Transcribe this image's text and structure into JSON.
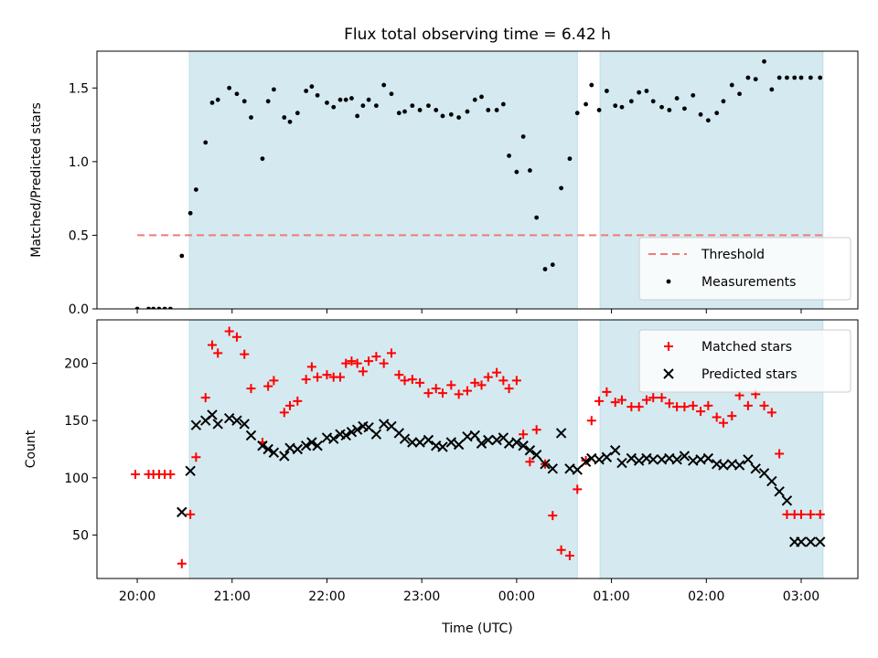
{
  "figure": {
    "title": "Flux total observing time = 6.42 h",
    "xlabel": "Time (UTC)"
  },
  "colors": {
    "shade": "#d4eaf0",
    "threshold": "#f07a7a",
    "measurement": "#000000",
    "matched": "#ff0000",
    "predicted": "#000000"
  },
  "chart_data": [
    {
      "type": "scatter",
      "panel": "top",
      "ylabel": "Matched/Predicted stars",
      "xlim_hours": [
        19.575,
        27.598
      ],
      "ylim": [
        0.0,
        1.75
      ],
      "yticks": [
        0.0,
        0.5,
        1.0,
        1.5
      ],
      "ytick_labels": [
        "0.0",
        "0.5",
        "1.0",
        "1.5"
      ],
      "xticks_hours": [
        20,
        21,
        22,
        23,
        24,
        25,
        26,
        27
      ],
      "xtick_labels": [
        "20:00",
        "21:00",
        "22:00",
        "23:00",
        "00:00",
        "01:00",
        "02:00",
        "03:00"
      ],
      "shaded_intervals_hours": [
        [
          20.55,
          24.64
        ],
        [
          24.88,
          27.23
        ]
      ],
      "legend_position": "lower-right",
      "threshold": {
        "name": "Threshold",
        "value": 0.5,
        "x_range_hours": [
          20.0,
          27.23
        ],
        "style": "dashed"
      },
      "series": [
        {
          "name": "Measurements",
          "marker": "dot",
          "x_hours": [
            20.0,
            20.12,
            20.17,
            20.23,
            20.29,
            20.35,
            20.47,
            20.56,
            20.62,
            20.72,
            20.79,
            20.85,
            20.97,
            21.05,
            21.13,
            21.2,
            21.32,
            21.38,
            21.44,
            21.55,
            21.61,
            21.69,
            21.78,
            21.84,
            21.9,
            22.0,
            22.07,
            22.14,
            22.2,
            22.26,
            22.32,
            22.38,
            22.44,
            22.52,
            22.6,
            22.68,
            22.76,
            22.82,
            22.9,
            22.98,
            23.07,
            23.15,
            23.22,
            23.31,
            23.39,
            23.48,
            23.56,
            23.63,
            23.7,
            23.79,
            23.86,
            23.92,
            24.0,
            24.07,
            24.14,
            24.21,
            24.3,
            24.38,
            24.47,
            24.56,
            24.64,
            24.73,
            24.79,
            24.87,
            24.95,
            25.04,
            25.11,
            25.21,
            25.29,
            25.37,
            25.44,
            25.53,
            25.61,
            25.69,
            25.77,
            25.86,
            25.94,
            26.02,
            26.11,
            26.18,
            26.27,
            26.35,
            26.44,
            26.52,
            26.61,
            26.69,
            26.77,
            26.85,
            26.93,
            27.0,
            27.1,
            27.2
          ],
          "y": [
            0.0,
            0.0,
            0.0,
            0.0,
            0.0,
            0.0,
            0.36,
            0.65,
            0.81,
            1.13,
            1.4,
            1.42,
            1.5,
            1.46,
            1.41,
            1.3,
            1.02,
            1.41,
            1.49,
            1.3,
            1.27,
            1.33,
            1.48,
            1.51,
            1.45,
            1.4,
            1.37,
            1.42,
            1.42,
            1.43,
            1.31,
            1.38,
            1.42,
            1.38,
            1.52,
            1.46,
            1.33,
            1.34,
            1.38,
            1.35,
            1.38,
            1.35,
            1.31,
            1.32,
            1.3,
            1.34,
            1.42,
            1.44,
            1.35,
            1.35,
            1.39,
            1.04,
            0.93,
            1.17,
            0.94,
            0.62,
            0.27,
            0.3,
            0.82,
            1.02,
            1.33,
            1.39,
            1.52,
            1.35,
            1.48,
            1.38,
            1.37,
            1.41,
            1.47,
            1.48,
            1.41,
            1.37,
            1.35,
            1.43,
            1.36,
            1.45,
            1.32,
            1.28,
            1.33,
            1.41,
            1.52,
            1.46,
            1.57,
            1.56,
            1.68,
            1.49,
            1.57,
            1.57,
            1.57,
            1.57,
            1.57,
            1.57
          ]
        }
      ]
    },
    {
      "type": "scatter",
      "panel": "bottom",
      "ylabel": "Count",
      "xlim_hours": [
        19.575,
        27.598
      ],
      "ylim": [
        12.0,
        238.0
      ],
      "yticks": [
        50,
        100,
        150,
        200
      ],
      "ytick_labels": [
        "50",
        "100",
        "150",
        "200"
      ],
      "xticks_hours": [
        20,
        21,
        22,
        23,
        24,
        25,
        26,
        27
      ],
      "xtick_labels": [
        "20:00",
        "21:00",
        "22:00",
        "23:00",
        "00:00",
        "01:00",
        "02:00",
        "03:00"
      ],
      "shaded_intervals_hours": [
        [
          20.55,
          24.64
        ],
        [
          24.88,
          27.23
        ]
      ],
      "legend_position": "upper-right",
      "series": [
        {
          "name": "Matched stars",
          "marker": "plus",
          "x_hours": [
            19.98,
            20.12,
            20.17,
            20.23,
            20.29,
            20.35,
            20.47,
            20.56,
            20.62,
            20.72,
            20.79,
            20.85,
            20.97,
            21.05,
            21.13,
            21.2,
            21.32,
            21.38,
            21.44,
            21.55,
            21.61,
            21.69,
            21.78,
            21.84,
            21.9,
            22.0,
            22.07,
            22.14,
            22.2,
            22.26,
            22.32,
            22.38,
            22.44,
            22.52,
            22.6,
            22.68,
            22.76,
            22.82,
            22.9,
            22.98,
            23.07,
            23.15,
            23.22,
            23.31,
            23.39,
            23.48,
            23.56,
            23.63,
            23.7,
            23.79,
            23.86,
            23.92,
            24.0,
            24.07,
            24.14,
            24.21,
            24.3,
            24.38,
            24.47,
            24.56,
            24.64,
            24.73,
            24.79,
            24.87,
            24.95,
            25.04,
            25.11,
            25.21,
            25.29,
            25.37,
            25.44,
            25.53,
            25.61,
            25.69,
            25.77,
            25.86,
            25.94,
            26.02,
            26.11,
            26.18,
            26.27,
            26.35,
            26.44,
            26.52,
            26.61,
            26.69,
            26.77,
            26.85,
            26.93,
            27.0,
            27.1,
            27.2
          ],
          "y": [
            103,
            103,
            103,
            103,
            103,
            103,
            25,
            68,
            118,
            170,
            216,
            209,
            228,
            223,
            208,
            178,
            131,
            180,
            185,
            157,
            163,
            167,
            186,
            197,
            188,
            190,
            188,
            188,
            200,
            202,
            200,
            193,
            202,
            206,
            200,
            209,
            190,
            185,
            186,
            183,
            174,
            178,
            174,
            181,
            173,
            176,
            183,
            181,
            188,
            192,
            185,
            178,
            185,
            138,
            114,
            142,
            112,
            67,
            37,
            32,
            90,
            115,
            150,
            167,
            175,
            166,
            168,
            162,
            162,
            168,
            170,
            170,
            165,
            162,
            162,
            163,
            158,
            163,
            153,
            148,
            154,
            172,
            163,
            173,
            163,
            157,
            121,
            68,
            68,
            68,
            68,
            68
          ]
        },
        {
          "name": "Predicted stars",
          "marker": "x",
          "x_hours": [
            20.47,
            20.56,
            20.62,
            20.72,
            20.79,
            20.85,
            20.97,
            21.05,
            21.13,
            21.2,
            21.32,
            21.38,
            21.44,
            21.55,
            21.61,
            21.69,
            21.78,
            21.84,
            21.9,
            22.0,
            22.07,
            22.14,
            22.2,
            22.26,
            22.32,
            22.38,
            22.44,
            22.52,
            22.6,
            22.68,
            22.76,
            22.82,
            22.9,
            22.98,
            23.07,
            23.15,
            23.22,
            23.31,
            23.39,
            23.48,
            23.56,
            23.63,
            23.7,
            23.79,
            23.86,
            23.92,
            24.0,
            24.07,
            24.14,
            24.21,
            24.3,
            24.38,
            24.47,
            24.56,
            24.64,
            24.73,
            24.79,
            24.87,
            24.95,
            25.04,
            25.11,
            25.21,
            25.29,
            25.37,
            25.44,
            25.53,
            25.61,
            25.69,
            25.77,
            25.86,
            25.94,
            26.02,
            26.11,
            26.18,
            26.27,
            26.35,
            26.44,
            26.52,
            26.61,
            26.69,
            26.77,
            26.85,
            26.93,
            27.0,
            27.1,
            27.2
          ],
          "y": [
            70,
            106,
            146,
            150,
            155,
            147,
            152,
            150,
            147,
            137,
            128,
            125,
            122,
            119,
            126,
            125,
            128,
            131,
            128,
            135,
            134,
            138,
            137,
            140,
            142,
            145,
            144,
            138,
            147,
            145,
            139,
            134,
            131,
            131,
            133,
            128,
            127,
            131,
            129,
            136,
            137,
            130,
            133,
            133,
            135,
            130,
            131,
            128,
            124,
            120,
            112,
            108,
            139,
            108,
            107,
            114,
            117,
            116,
            118,
            124,
            113,
            117,
            115,
            117,
            116,
            116,
            117,
            116,
            119,
            115,
            116,
            117,
            112,
            111,
            112,
            111,
            116,
            108,
            104,
            97,
            88,
            80,
            44,
            44,
            44,
            44
          ]
        }
      ]
    }
  ]
}
